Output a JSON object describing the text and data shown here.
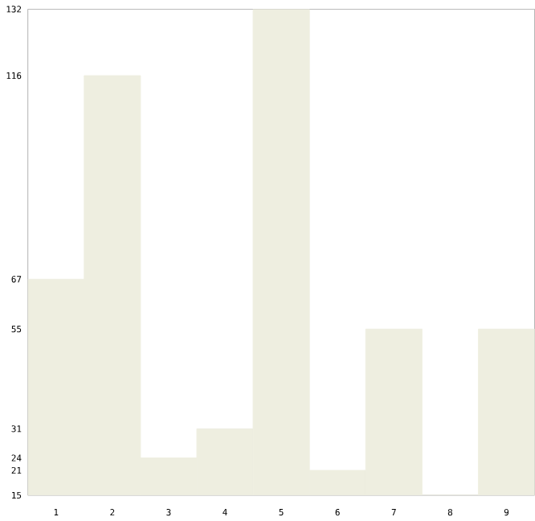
{
  "chart_data": {
    "type": "bar",
    "categories": [
      "1",
      "2",
      "3",
      "4",
      "5",
      "6",
      "7",
      "8",
      "9"
    ],
    "values": [
      67,
      116,
      24,
      31,
      132,
      21,
      55,
      15,
      55
    ],
    "color": "#eeeee0",
    "ylim": [
      15,
      132
    ],
    "yticks": [
      15,
      21,
      24,
      31,
      55,
      67,
      116,
      132
    ],
    "grid": false
  }
}
